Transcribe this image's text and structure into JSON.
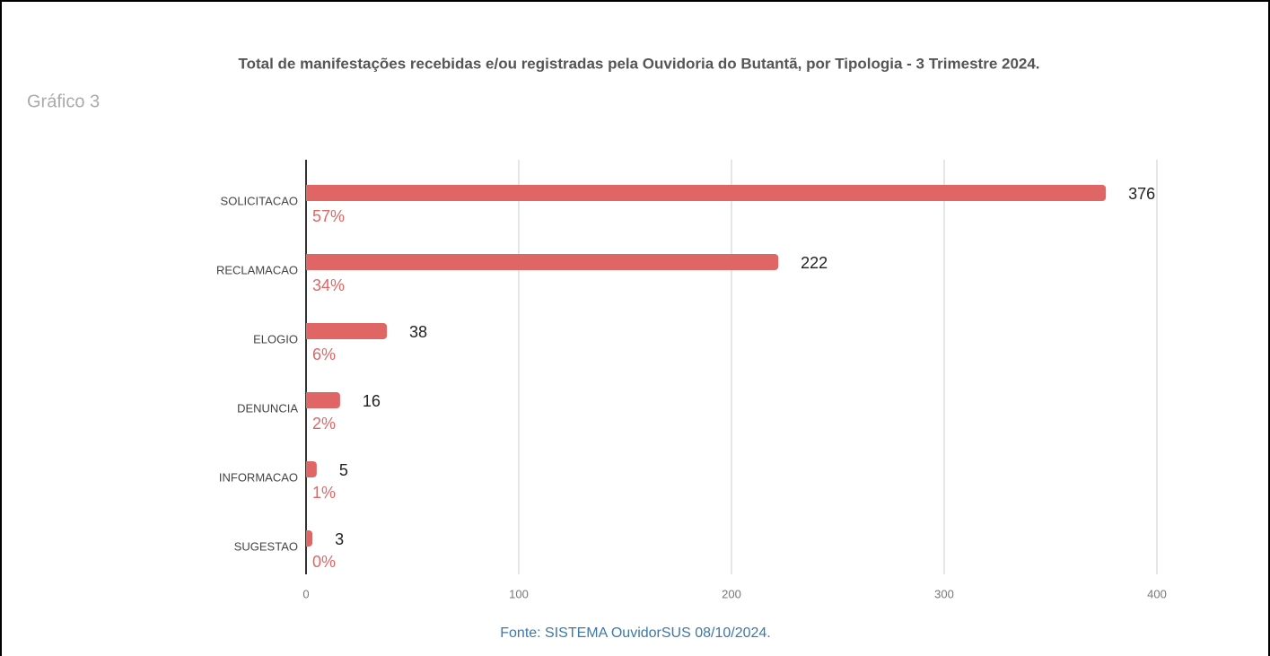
{
  "chart_data": {
    "type": "bar",
    "orientation": "horizontal",
    "title": "Total de manifestações recebidas e/ou registradas pela Ouvidoria do Butantã, por Tipologia - 3 Trimestre 2024.",
    "subtitle": "Gráfico 3",
    "categories": [
      "SOLICITACAO",
      "RECLAMACAO",
      "ELOGIO",
      "DENUNCIA",
      "INFORMACAO",
      "SUGESTAO"
    ],
    "values": [
      376,
      222,
      38,
      16,
      5,
      3
    ],
    "percent_labels": [
      "57%",
      "34%",
      "6%",
      "2%",
      "1%",
      "0%"
    ],
    "color": "#e06666",
    "xlim": [
      0,
      400
    ],
    "xticks": [
      0,
      100,
      200,
      300,
      400
    ],
    "grid": true,
    "source": "Fonte: SISTEMA OuvidorSUS 08/10/2024."
  }
}
